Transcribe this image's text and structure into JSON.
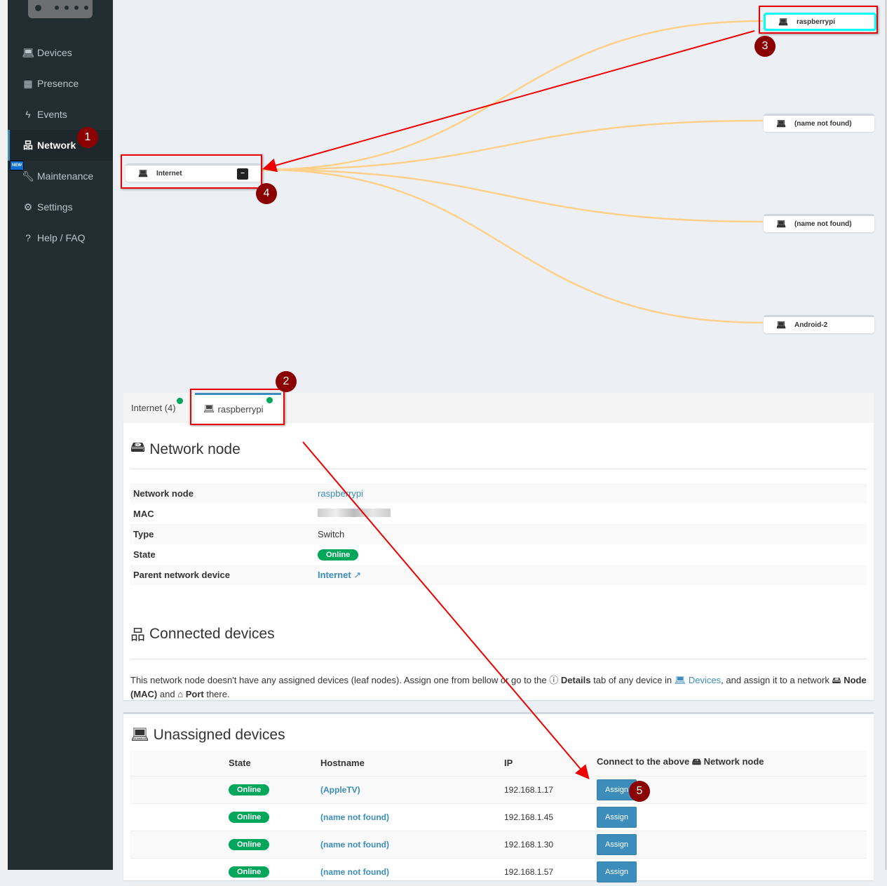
{
  "sidebar": {
    "items": [
      {
        "label": "Devices",
        "icon": "laptop-icon"
      },
      {
        "label": "Presence",
        "icon": "calendar-icon"
      },
      {
        "label": "Events",
        "icon": "bolt-icon"
      },
      {
        "label": "Network",
        "icon": "sitemap-icon",
        "active": true
      },
      {
        "label": "Maintenance",
        "icon": "wrench-icon",
        "badge": "NEW"
      },
      {
        "label": "Settings",
        "icon": "gear-icon"
      },
      {
        "label": "Help / FAQ",
        "icon": "question-icon"
      }
    ]
  },
  "graph": {
    "root": {
      "label": "Internet",
      "collapse": "−"
    },
    "leaves": [
      {
        "label": "raspberrypi",
        "selected": true
      },
      {
        "label": "(name not found)"
      },
      {
        "label": "(name not found)"
      },
      {
        "label": "Android-2"
      }
    ],
    "link_color": "#ffd08a"
  },
  "tabs": [
    {
      "label": "Internet (4)"
    },
    {
      "label": "raspberrypi",
      "active": true
    }
  ],
  "node_panel": {
    "title": "Network node",
    "rows": [
      {
        "key": "Network node",
        "value": "raspberrypi"
      },
      {
        "key": "MAC",
        "value": ""
      },
      {
        "key": "Type",
        "value": "Switch"
      },
      {
        "key": "State",
        "value": "Online"
      },
      {
        "key": "Parent network device",
        "value": "Internet"
      }
    ]
  },
  "connected": {
    "title": "Connected devices",
    "text1": "This network node doesn't have any assigned devices (leaf nodes). Assign one from bellow or go to the",
    "details": "Details",
    "text2": "tab of any device in",
    "devices": "Devices",
    "text3": ", and assign it to a network",
    "node_mac": "Node (MAC)",
    "and": "and",
    "port": "Port",
    "there": "there."
  },
  "unassigned": {
    "title": "Unassigned devices",
    "headers": [
      "State",
      "Hostname",
      "IP",
      "Connect to the above",
      "Network node"
    ],
    "rows": [
      {
        "state": "Online",
        "hostname": "(AppleTV)",
        "ip": "192.168.1.17",
        "action": "Assign"
      },
      {
        "state": "Online",
        "hostname": "(name not found)",
        "ip": "192.168.1.45",
        "action": "Assign"
      },
      {
        "state": "Online",
        "hostname": "(name not found)",
        "ip": "192.168.1.30",
        "action": "Assign"
      },
      {
        "state": "Online",
        "hostname": "(name not found)",
        "ip": "192.168.1.57",
        "action": "Assign"
      }
    ]
  },
  "annotations": [
    "1",
    "2",
    "3",
    "4",
    "5"
  ],
  "colors": {
    "sidebar": "#222d32",
    "accent": "#3c8dbc",
    "online": "#00a65a",
    "annotation": "#e00000"
  }
}
